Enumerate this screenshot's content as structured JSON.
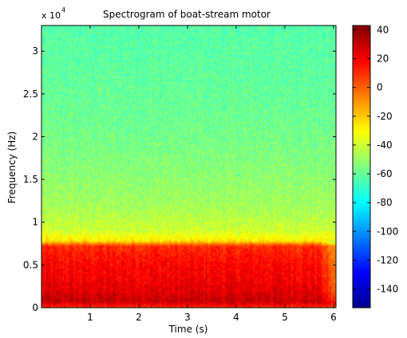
{
  "chart_data": {
    "type": "heatmap",
    "title": "Spectrogram of boat-stream motor",
    "xlabel": "Time (s)",
    "ylabel": "Frequency (Hz)",
    "y_exponent_label": "x 10",
    "y_exponent": "4",
    "xlim": [
      0,
      6.05
    ],
    "ylim": [
      0,
      33000
    ],
    "x_ticks": [
      1,
      2,
      3,
      4,
      5,
      6
    ],
    "x_tick_labels": [
      "1",
      "2",
      "3",
      "4",
      "5",
      "6"
    ],
    "y_ticks": [
      0,
      5000,
      10000,
      15000,
      20000,
      25000,
      30000
    ],
    "y_tick_labels": [
      "0",
      "0.5",
      "1",
      "1.5",
      "2",
      "2.5",
      "3"
    ],
    "colorbar": {
      "colormap": "jet",
      "range": [
        -153,
        43
      ],
      "ticks": [
        40,
        20,
        0,
        -20,
        -40,
        -60,
        -80,
        -100,
        -120,
        -140
      ],
      "tick_labels": [
        "40",
        "20",
        "0",
        "-20",
        "-40",
        "-60",
        "-80",
        "-100",
        "-120",
        "-140"
      ]
    },
    "power_db_by_frequency": {
      "frequency_hz": [
        0,
        700,
        2000,
        3500,
        5000,
        6200,
        7200,
        7800,
        9000,
        12000,
        15000,
        20000,
        25000,
        30000,
        33000
      ],
      "power_db": [
        8,
        30,
        24,
        20,
        18,
        14,
        10,
        -26,
        -40,
        -48,
        -52,
        -57,
        -60,
        -62,
        -63
      ]
    },
    "notes": "Strong low-frequency energy (below ~7.5 kHz) persists throughout; weaker band above. After ~5.8 s the low band fades."
  }
}
